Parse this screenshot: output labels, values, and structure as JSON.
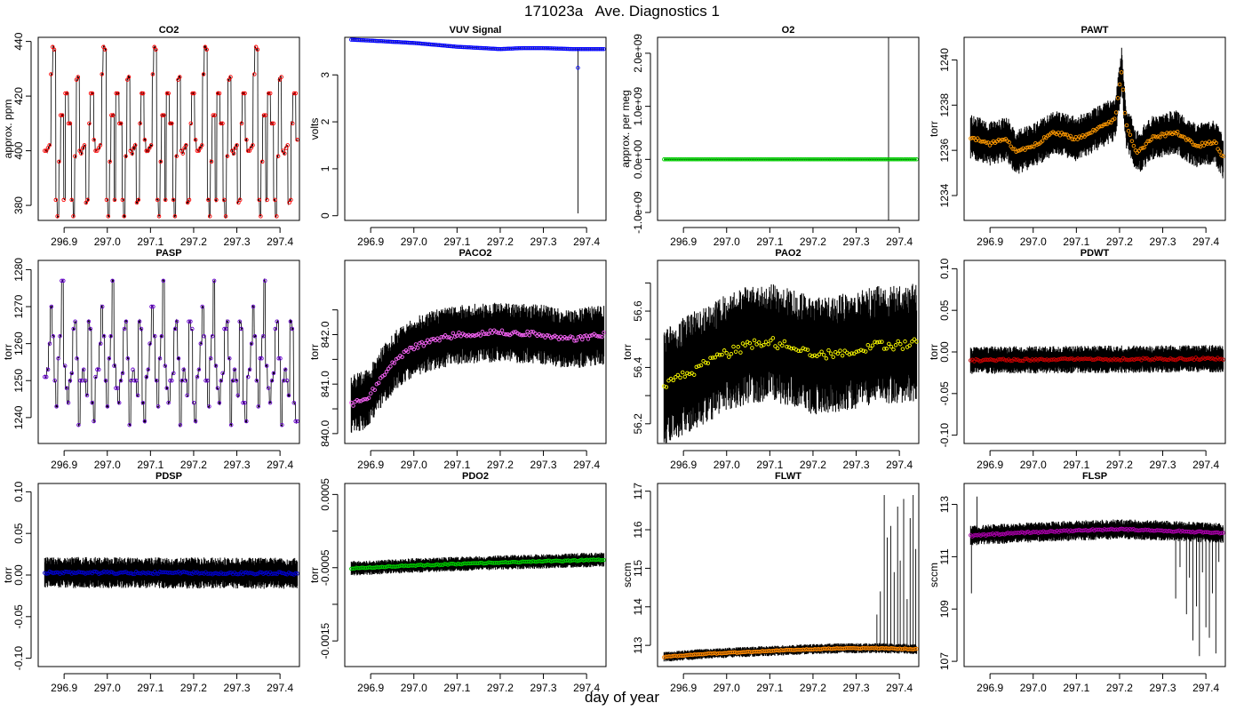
{
  "page": {
    "title": "171023a   Ave. Diagnostics 1",
    "xlabel": "day of year"
  },
  "chart_data": [
    {
      "type": "line",
      "title": "CO2",
      "ylabel": "approx. ppm",
      "xlim": [
        296.84,
        297.445
      ],
      "ylim": [
        374.5,
        441.5
      ],
      "xticks": [
        296.9,
        297.0,
        297.1,
        297.2,
        297.3,
        297.4
      ],
      "xtick_labels": [
        "296.9",
        "297.0",
        "297.1",
        "297.2",
        "297.3",
        "297.4"
      ],
      "yticks": [
        380,
        400,
        420,
        440
      ],
      "ytick_labels": [
        "380",
        "400",
        "420",
        "440"
      ],
      "series_color": "#ff0000",
      "pattern": [
        400,
        400,
        401,
        402,
        428,
        438,
        437,
        382,
        376,
        396,
        413,
        413,
        382,
        421,
        421,
        410,
        410,
        382,
        376,
        398,
        426,
        427,
        400,
        399,
        401,
        402,
        381,
        382,
        410,
        421,
        421,
        404
      ],
      "pattern_period": 0.117,
      "x_start": 296.855,
      "x_end": 297.44,
      "n_points": 160
    },
    {
      "type": "scatter",
      "title": "VUV Signal",
      "ylabel": "volts",
      "xlim": [
        296.84,
        297.445
      ],
      "ylim": [
        -0.1,
        3.8
      ],
      "xticks": [
        296.9,
        297.0,
        297.1,
        297.2,
        297.3,
        297.4
      ],
      "xtick_labels": [
        "296.9",
        "297.0",
        "297.1",
        "297.2",
        "297.3",
        "297.4"
      ],
      "yticks": [
        0,
        1,
        2,
        3
      ],
      "ytick_labels": [
        "0",
        "1",
        "2",
        "3"
      ],
      "series_color": "#0000ff",
      "trend_x": [
        296.855,
        296.9,
        297.0,
        297.05,
        297.1,
        297.2,
        297.25,
        297.3,
        297.37,
        297.44
      ],
      "trend_y": [
        3.75,
        3.73,
        3.68,
        3.64,
        3.6,
        3.55,
        3.57,
        3.57,
        3.55,
        3.55
      ],
      "spike": {
        "x": 297.38,
        "ymin": 0.05,
        "ymax": 3.55,
        "point": 3.15
      },
      "x_start": 296.855,
      "x_end": 297.44,
      "n_points": 170
    },
    {
      "type": "scatter",
      "title": "O2",
      "ylabel": "approx. per meg",
      "xlim": [
        296.84,
        297.445
      ],
      "ylim": [
        -1150000000.0,
        2300000000.0
      ],
      "xticks": [
        296.9,
        297.0,
        297.1,
        297.2,
        297.3,
        297.4
      ],
      "xtick_labels": [
        "296.9",
        "297.0",
        "297.1",
        "297.2",
        "297.3",
        "297.4"
      ],
      "yticks": [
        -1000000000.0,
        0,
        1000000000.0,
        2000000000.0
      ],
      "ytick_labels": [
        "-1.0e+09",
        "0.0e+00",
        "1.0e+09",
        "2.0e+09"
      ],
      "series_color": "#00cc00",
      "value": 0,
      "spike": {
        "x": 297.375,
        "ymin": -1200000000.0,
        "ymax": 2500000000.0
      },
      "x_start": 296.855,
      "x_end": 297.44,
      "n_points": 140
    },
    {
      "type": "line",
      "title": "PAWT",
      "ylabel": "torr",
      "xlim": [
        296.84,
        297.445
      ],
      "ylim": [
        1232.9,
        1241.0
      ],
      "xticks": [
        296.9,
        297.0,
        297.1,
        297.2,
        297.3,
        297.4
      ],
      "xtick_labels": [
        "296.9",
        "297.0",
        "297.1",
        "297.2",
        "297.3",
        "297.4"
      ],
      "yticks": [
        1234,
        1236,
        1238,
        1240
      ],
      "ytick_labels": [
        "1234",
        "1236",
        "1238",
        "1240"
      ],
      "series_color": "#ff9900",
      "trend_x": [
        296.855,
        296.9,
        296.94,
        296.96,
        297.0,
        297.05,
        297.1,
        297.15,
        297.19,
        297.205,
        297.215,
        297.24,
        297.28,
        297.33,
        297.38,
        297.42,
        297.44
      ],
      "trend_y": [
        1236.6,
        1236.3,
        1236.5,
        1235.9,
        1236.2,
        1236.8,
        1236.5,
        1237.0,
        1237.4,
        1239.6,
        1237.1,
        1235.9,
        1236.6,
        1236.8,
        1236.2,
        1236.4,
        1235.7
      ],
      "band": 0.9,
      "x_start": 296.855,
      "x_end": 297.44,
      "n_points": 145
    },
    {
      "type": "line",
      "title": "PASP",
      "ylabel": "torr",
      "xlim": [
        296.84,
        297.445
      ],
      "ylim": [
        1233.0,
        1282.5
      ],
      "xticks": [
        296.9,
        297.0,
        297.1,
        297.2,
        297.3,
        297.4
      ],
      "xtick_labels": [
        "296.9",
        "297.0",
        "297.1",
        "297.2",
        "297.3",
        "297.4"
      ],
      "yticks": [
        1240,
        1250,
        1260,
        1270,
        1280
      ],
      "ytick_labels": [
        "1240",
        "1250",
        "1260",
        "1270",
        "1280"
      ],
      "series_color": "#6600cc",
      "pattern": [
        1251,
        1253,
        1260,
        1270,
        1262,
        1250,
        1243,
        1256,
        1262,
        1277,
        1254,
        1248,
        1244,
        1250,
        1252,
        1264,
        1266,
        1256,
        1238,
        1250,
        1253,
        1250,
        1246,
        1266,
        1264,
        1244,
        1239
      ],
      "pattern_period": 0.117,
      "x_start": 296.855,
      "x_end": 297.44,
      "n_points": 150
    },
    {
      "type": "line",
      "title": "PACO2",
      "ylabel": "torr",
      "xlim": [
        296.84,
        297.445
      ],
      "ylim": [
        839.8,
        843.5
      ],
      "xticks": [
        296.9,
        297.0,
        297.1,
        297.2,
        297.3,
        297.4
      ],
      "xtick_labels": [
        "296.9",
        "297.0",
        "297.1",
        "297.2",
        "297.3",
        "297.4"
      ],
      "yticks": [
        840.0,
        840.5,
        841.0,
        841.5,
        842.0,
        842.5
      ],
      "ytick_labels": [
        "840.0",
        "",
        "841.0",
        "",
        "842.0",
        ""
      ],
      "series_color": "#ff66ff",
      "trend_x": [
        296.855,
        296.88,
        296.9,
        296.93,
        296.96,
        297.0,
        297.05,
        297.1,
        297.2,
        297.3,
        297.35,
        297.44
      ],
      "trend_y": [
        840.6,
        840.65,
        840.8,
        841.2,
        841.5,
        841.75,
        841.9,
        842.0,
        842.05,
        842.0,
        841.9,
        842.0
      ],
      "band": 0.55,
      "x_start": 296.855,
      "x_end": 297.44,
      "n_points": 130
    },
    {
      "type": "line",
      "title": "PAO2",
      "ylabel": "torr",
      "xlim": [
        296.84,
        297.445
      ],
      "ylim": [
        56.13,
        56.78
      ],
      "xticks": [
        296.9,
        297.0,
        297.1,
        297.2,
        297.3,
        297.4
      ],
      "xtick_labels": [
        "296.9",
        "297.0",
        "297.1",
        "297.2",
        "297.3",
        "297.4"
      ],
      "yticks": [
        56.2,
        56.3,
        56.4,
        56.5,
        56.6,
        56.7
      ],
      "ytick_labels": [
        "56.2",
        "",
        "56.4",
        "",
        "56.6",
        ""
      ],
      "series_color": "#ffff00",
      "trend_x": [
        296.855,
        296.9,
        296.95,
        297.0,
        297.05,
        297.1,
        297.15,
        297.2,
        297.25,
        297.3,
        297.35,
        297.4,
        297.44
      ],
      "trend_y": [
        56.33,
        56.37,
        56.41,
        56.45,
        56.48,
        56.49,
        56.47,
        56.44,
        56.45,
        56.46,
        56.48,
        56.48,
        56.49
      ],
      "band": 0.19,
      "x_start": 296.855,
      "x_end": 297.44,
      "n_points": 110
    },
    {
      "type": "line",
      "title": "PDWT",
      "ylabel": "torr",
      "xlim": [
        296.84,
        297.445
      ],
      "ylim": [
        -0.11,
        0.11
      ],
      "xticks": [
        296.9,
        297.0,
        297.1,
        297.2,
        297.3,
        297.4
      ],
      "xtick_labels": [
        "296.9",
        "297.0",
        "297.1",
        "297.2",
        "297.3",
        "297.4"
      ],
      "yticks": [
        -0.1,
        -0.05,
        0,
        0.05,
        0.1
      ],
      "ytick_labels": [
        "-0.10",
        "-0.05",
        "0.00",
        "0.05",
        "0.10"
      ],
      "series_color": "#cc0000",
      "trend_x": [
        296.855,
        297.44
      ],
      "trend_y": [
        -0.01,
        -0.008
      ],
      "band": 0.015,
      "x_start": 296.855,
      "x_end": 297.44,
      "n_points": 140
    },
    {
      "type": "line",
      "title": "PDSP",
      "ylabel": "torr",
      "xlim": [
        296.84,
        297.445
      ],
      "ylim": [
        -0.11,
        0.11
      ],
      "xticks": [
        296.9,
        297.0,
        297.1,
        297.2,
        297.3,
        297.4
      ],
      "xtick_labels": [
        "296.9",
        "297.0",
        "297.1",
        "297.2",
        "297.3",
        "297.4"
      ],
      "yticks": [
        -0.1,
        -0.05,
        0,
        0.05,
        0.1
      ],
      "ytick_labels": [
        "-0.10",
        "-0.05",
        "0.00",
        "0.05",
        "0.10"
      ],
      "series_color": "#0000cc",
      "trend_x": [
        296.855,
        297.44
      ],
      "trend_y": [
        0.003,
        0.002
      ],
      "band": 0.017,
      "x_start": 296.855,
      "x_end": 297.44,
      "n_points": 150
    },
    {
      "type": "line",
      "title": "PDO2",
      "ylabel": "torr",
      "xlim": [
        296.84,
        297.445
      ],
      "ylim": [
        -0.00185,
        0.00065
      ],
      "xticks": [
        296.9,
        297.0,
        297.1,
        297.2,
        297.3,
        297.4
      ],
      "xtick_labels": [
        "296.9",
        "297.0",
        "297.1",
        "297.2",
        "297.3",
        "297.4"
      ],
      "yticks": [
        -0.0015,
        -0.001,
        -0.0005,
        0,
        0.0005
      ],
      "ytick_labels": [
        "-0.0015",
        "",
        "-0.0005",
        "",
        "0.0005"
      ],
      "series_color": "#00cc00",
      "trend_x": [
        296.855,
        297.0,
        297.2,
        297.44
      ],
      "trend_y": [
        -0.00051,
        -0.00047,
        -0.00043,
        -0.00039
      ],
      "band": 9e-05,
      "x_start": 296.855,
      "x_end": 297.44,
      "n_points": 150
    },
    {
      "type": "line",
      "title": "FLWT",
      "ylabel": "sccm",
      "xlim": [
        296.84,
        297.445
      ],
      "ylim": [
        112.45,
        117.2
      ],
      "xticks": [
        296.9,
        297.0,
        297.1,
        297.2,
        297.3,
        297.4
      ],
      "xtick_labels": [
        "296.9",
        "297.0",
        "297.1",
        "297.2",
        "297.3",
        "297.4"
      ],
      "yticks": [
        113,
        114,
        115,
        116,
        117
      ],
      "ytick_labels": [
        "113",
        "114",
        "115",
        "116",
        "117"
      ],
      "series_color": "#ff8800",
      "trend_x": [
        296.855,
        296.95,
        297.05,
        297.15,
        297.25,
        297.35,
        297.44
      ],
      "trend_y": [
        112.7,
        112.78,
        112.83,
        112.88,
        112.92,
        112.93,
        112.9
      ],
      "band": 0.12,
      "spikes": [
        [
          297.348,
          113.8
        ],
        [
          297.356,
          114.4
        ],
        [
          297.365,
          116.9
        ],
        [
          297.372,
          115.8
        ],
        [
          297.38,
          116.1
        ],
        [
          297.388,
          114.9
        ],
        [
          297.396,
          116.6
        ],
        [
          297.402,
          115.2
        ],
        [
          297.41,
          116.8
        ],
        [
          297.418,
          114.2
        ],
        [
          297.425,
          116.3
        ],
        [
          297.432,
          116.9
        ],
        [
          297.438,
          115.5
        ]
      ],
      "x_start": 296.855,
      "x_end": 297.44,
      "n_points": 150
    },
    {
      "type": "line",
      "title": "FLSP",
      "ylabel": "sccm",
      "xlim": [
        296.84,
        297.445
      ],
      "ylim": [
        106.8,
        113.8
      ],
      "xticks": [
        296.9,
        297.0,
        297.1,
        297.2,
        297.3,
        297.4
      ],
      "xtick_labels": [
        "296.9",
        "297.0",
        "297.1",
        "297.2",
        "297.3",
        "297.4"
      ],
      "yticks": [
        107,
        109,
        111,
        113
      ],
      "ytick_labels": [
        "107",
        "109",
        "111",
        "113"
      ],
      "series_color": "#aa00aa",
      "trend_x": [
        296.855,
        296.95,
        297.1,
        297.2,
        297.3,
        297.44
      ],
      "trend_y": [
        111.8,
        111.9,
        112.0,
        112.05,
        112.0,
        111.9
      ],
      "band": 0.35,
      "spikes": [
        [
          296.857,
          109.6
        ],
        [
          296.87,
          113.3
        ],
        [
          297.33,
          109.4
        ],
        [
          297.34,
          110.6
        ],
        [
          297.355,
          108.8
        ],
        [
          297.362,
          110.2
        ],
        [
          297.37,
          107.8
        ],
        [
          297.378,
          109.1
        ],
        [
          297.385,
          107.2
        ],
        [
          297.392,
          110.4
        ],
        [
          297.4,
          108.3
        ],
        [
          297.408,
          107.9
        ],
        [
          297.415,
          109.6
        ],
        [
          297.423,
          107.3
        ],
        [
          297.43,
          110.8
        ]
      ],
      "x_start": 296.855,
      "x_end": 297.44,
      "n_points": 150
    }
  ]
}
